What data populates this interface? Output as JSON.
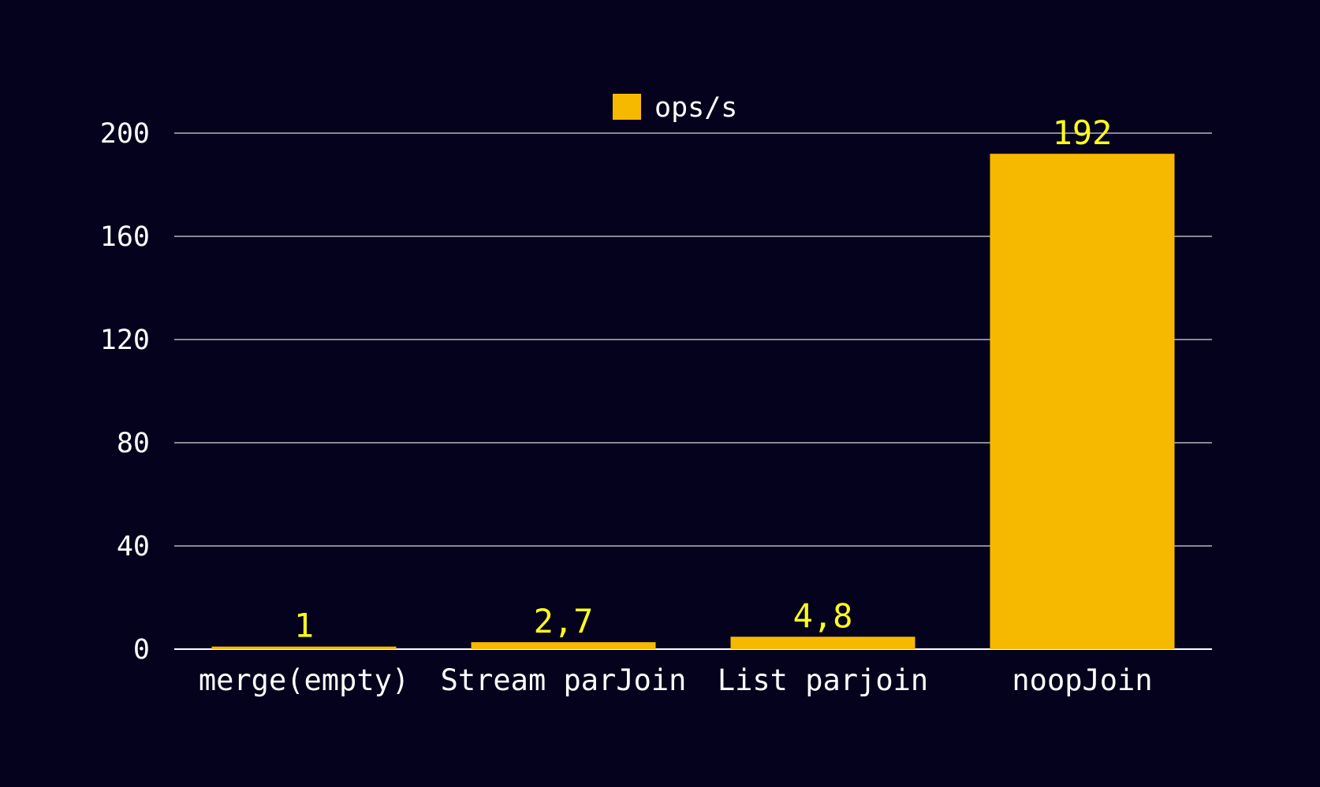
{
  "chart_data": {
    "type": "bar",
    "categories": [
      "merge(empty)",
      "Stream parJoin",
      "List parjoin",
      "noopJoin"
    ],
    "series": [
      {
        "name": "ops/s",
        "values": [
          1,
          2.7,
          4.8,
          192
        ],
        "value_labels": [
          "1",
          "2,7",
          "4,8",
          "192"
        ]
      }
    ],
    "title": "",
    "xlabel": "",
    "ylabel": "",
    "ylim": [
      0,
      200
    ],
    "yticks": [
      "0",
      "40",
      "80",
      "120",
      "160",
      "200"
    ],
    "grid": true,
    "legend": "top-center",
    "colors": {
      "background": "#05021d",
      "bar": "#f7b900",
      "value_label": "#ffff1a",
      "grid": "#ffffff",
      "text": "#ffffff"
    }
  }
}
